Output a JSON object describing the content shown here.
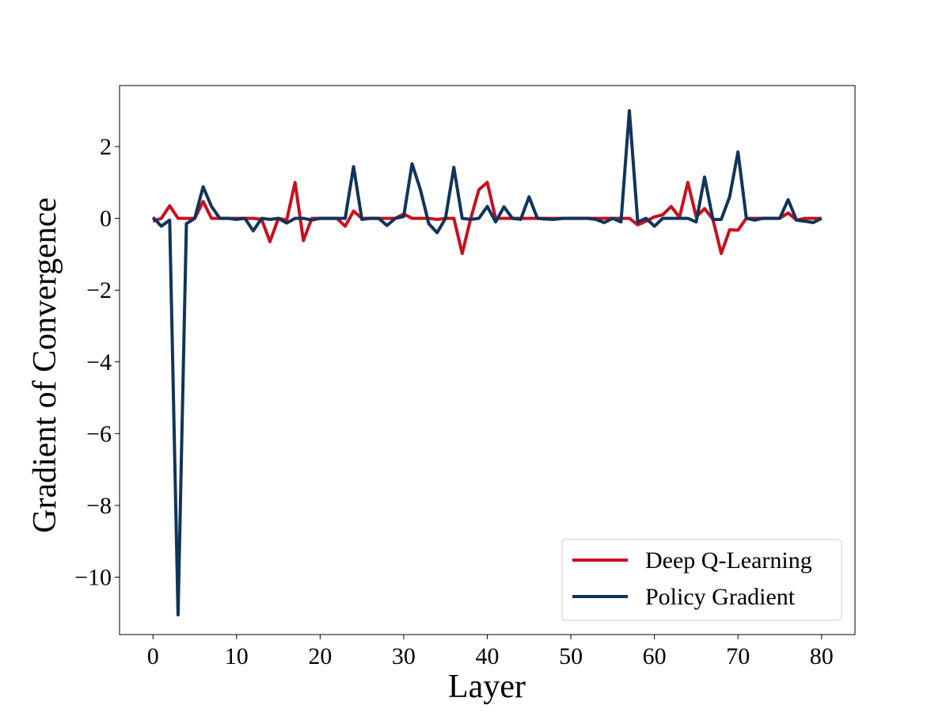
{
  "chart_data": {
    "type": "line",
    "xlabel": "Layer",
    "ylabel": "Gradient of Convergence",
    "xlim": [
      -4,
      84
    ],
    "ylim": [
      -11.6,
      3.7
    ],
    "xticks": [
      0,
      10,
      20,
      30,
      40,
      50,
      60,
      70,
      80
    ],
    "yticks": [
      -10,
      -8,
      -6,
      -4,
      -2,
      0,
      2
    ],
    "grid": false,
    "legend_position": "lower-right",
    "x": [
      0,
      1,
      2,
      3,
      4,
      5,
      6,
      7,
      8,
      9,
      10,
      11,
      12,
      13,
      14,
      15,
      16,
      17,
      18,
      19,
      20,
      21,
      22,
      23,
      24,
      25,
      26,
      27,
      28,
      29,
      30,
      31,
      32,
      33,
      34,
      35,
      36,
      37,
      38,
      39,
      40,
      41,
      42,
      43,
      44,
      45,
      46,
      47,
      48,
      49,
      50,
      51,
      52,
      53,
      54,
      55,
      56,
      57,
      58,
      59,
      60,
      61,
      62,
      63,
      64,
      65,
      66,
      67,
      68,
      69,
      70,
      71,
      72,
      73,
      74,
      75,
      76,
      77,
      78,
      79,
      80
    ],
    "series": [
      {
        "name": "Deep Q-Learning",
        "color": "#c8101e",
        "values": [
          -0.08,
          0,
          0.35,
          0,
          0,
          0,
          0.47,
          0,
          0,
          0,
          0,
          0,
          0,
          -0.03,
          -0.65,
          0,
          -0.05,
          1.0,
          -0.62,
          0,
          0,
          0,
          0,
          -0.22,
          0.2,
          0,
          0,
          0,
          0,
          0,
          0.12,
          0,
          0,
          0,
          -0.03,
          0,
          0,
          -0.98,
          -0.02,
          0.8,
          1.0,
          0,
          0,
          0,
          0,
          0,
          0,
          0,
          0,
          0,
          0,
          0,
          0,
          0,
          0,
          0,
          0,
          0,
          -0.18,
          -0.08,
          0.04,
          0.1,
          0.33,
          0.03,
          1.0,
          0.04,
          0.27,
          -0.03,
          -0.98,
          -0.32,
          -0.33,
          0,
          0,
          0,
          0,
          0,
          0.15,
          -0.05,
          0,
          0,
          0
        ]
      },
      {
        "name": "Policy Gradient",
        "color": "#10345a",
        "values": [
          0.03,
          -0.22,
          -0.05,
          -11.05,
          -0.15,
          0,
          0.88,
          0.33,
          0,
          0,
          -0.03,
          0,
          -0.35,
          0,
          -0.03,
          0,
          -0.13,
          0,
          0,
          -0.05,
          0,
          0,
          0,
          0,
          1.44,
          -0.03,
          0,
          0,
          -0.2,
          0,
          0.05,
          1.52,
          0.8,
          -0.15,
          -0.4,
          0,
          1.42,
          0,
          -0.03,
          0,
          0.33,
          -0.1,
          0.32,
          0,
          -0.03,
          0.6,
          0,
          -0.02,
          -0.03,
          0,
          0,
          0,
          0,
          -0.03,
          -0.12,
          0,
          -0.1,
          3.0,
          -0.1,
          0,
          -0.22,
          0,
          0,
          0,
          0,
          -0.1,
          1.15,
          -0.03,
          -0.03,
          0.6,
          1.85,
          0,
          -0.05,
          0,
          0,
          0,
          0.52,
          -0.05,
          -0.08,
          -0.12,
          0
        ]
      }
    ]
  },
  "colors": {
    "axis": "#000000",
    "background": "#ffffff",
    "legend_border": "#cccccc"
  }
}
